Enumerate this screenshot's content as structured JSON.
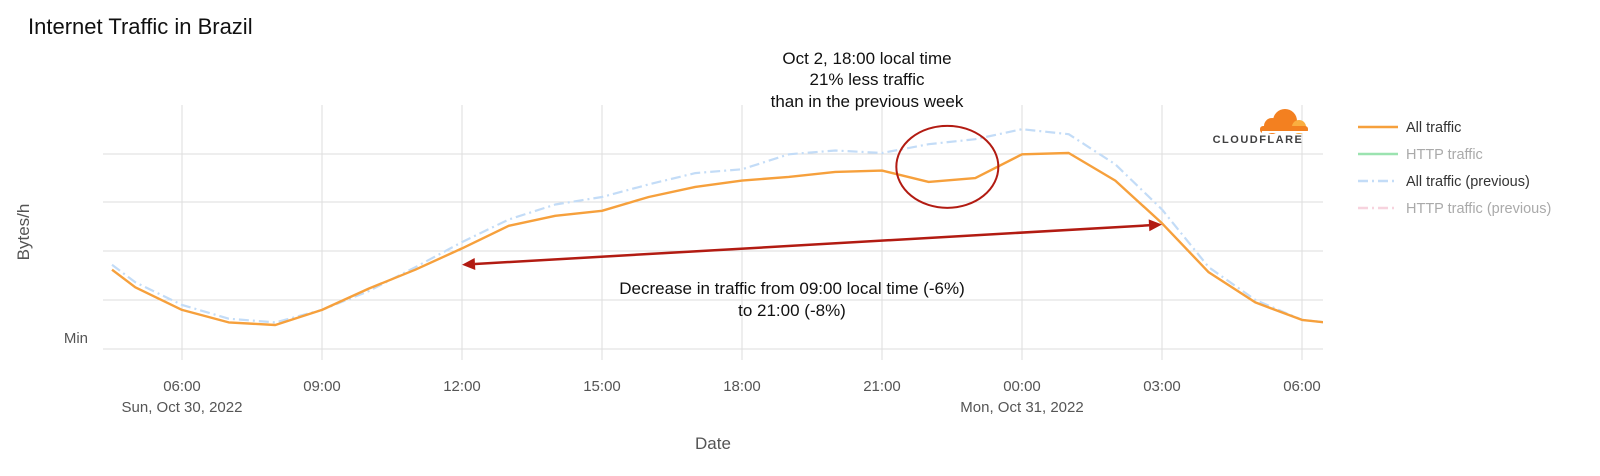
{
  "colors": {
    "all_traffic": "#f6a03c",
    "http_traffic": "#9be3b0",
    "all_traffic_previous": "#c3dcf7",
    "http_traffic_previous": "#f7d3de",
    "annotation": "#b21b12",
    "legend_active_text": "#333333",
    "legend_inactive_text": "#aaaaaa",
    "grid": "#dddddd",
    "brand_orange": "#f38020"
  },
  "logo": {
    "text": "CLOUDFLARE",
    "icon": "cloudflare-cloud-icon"
  },
  "chart_data": {
    "type": "line",
    "title": "Internet Traffic in Brazil",
    "xlabel": "Date",
    "ylabel": "Bytes/h",
    "y_tick_labels": [
      {
        "value": 0,
        "label": "Min"
      }
    ],
    "ylim": [
      0,
      100
    ],
    "x_range_hours": [
      4.6,
      30.4
    ],
    "x_ticks": [
      {
        "hour": 6,
        "label": "06:00",
        "sublabel": "Sun, Oct 30, 2022"
      },
      {
        "hour": 9,
        "label": "09:00",
        "sublabel": ""
      },
      {
        "hour": 12,
        "label": "12:00",
        "sublabel": ""
      },
      {
        "hour": 15,
        "label": "15:00",
        "sublabel": ""
      },
      {
        "hour": 18,
        "label": "18:00",
        "sublabel": ""
      },
      {
        "hour": 21,
        "label": "21:00",
        "sublabel": ""
      },
      {
        "hour": 24,
        "label": "00:00",
        "sublabel": "Mon, Oct 31, 2022"
      },
      {
        "hour": 27,
        "label": "03:00",
        "sublabel": ""
      },
      {
        "hour": 30,
        "label": "06:00",
        "sublabel": ""
      }
    ],
    "grid": true,
    "legend_position": "right",
    "series": [
      {
        "name": "All traffic",
        "color_key": "all_traffic",
        "dash": "solid",
        "active": true,
        "x": [
          4.5,
          5,
          6,
          7,
          8,
          9,
          10,
          11,
          12,
          13,
          14,
          15,
          16,
          17,
          18,
          19,
          20,
          21,
          22,
          23,
          24,
          25,
          26,
          27,
          28,
          29,
          30,
          30.5
        ],
        "values": [
          26,
          19,
          10,
          5,
          4,
          10,
          18.5,
          26,
          34.5,
          43.5,
          47.5,
          49.5,
          55,
          59,
          61.5,
          63,
          65,
          65.5,
          61,
          62.5,
          72,
          72.5,
          61.5,
          44.5,
          25,
          13,
          6,
          5
        ]
      },
      {
        "name": "HTTP traffic",
        "color_key": "http_traffic",
        "dash": "solid",
        "active": false,
        "x": [],
        "values": []
      },
      {
        "name": "All traffic (previous)",
        "color_key": "all_traffic_previous",
        "dash": "dashdot",
        "active": true,
        "x": [
          4.5,
          5,
          6,
          7,
          8,
          9,
          10,
          11,
          12,
          13,
          14,
          15,
          16,
          17,
          18,
          19,
          20,
          21,
          22,
          23,
          24,
          25,
          26,
          27,
          28,
          29,
          30,
          30.5
        ],
        "values": [
          28,
          21,
          12,
          6.5,
          5,
          10,
          17.5,
          27,
          37,
          46,
          52,
          55,
          60,
          64.5,
          66,
          72,
          73.5,
          72.5,
          76,
          78,
          82,
          80,
          68,
          50,
          27,
          14,
          6,
          5
        ]
      },
      {
        "name": "HTTP traffic (previous)",
        "color_key": "http_traffic_previous",
        "dash": "dashdot",
        "active": false,
        "x": [],
        "values": []
      }
    ],
    "annotations": [
      {
        "id": "drop-note",
        "lines": [
          "Oct 2, 18:00 local time",
          "21% less traffic",
          "than in the previous week"
        ],
        "highlight_hour": 22.4,
        "highlight_value": 67
      },
      {
        "id": "decrease-note",
        "lines": [
          "Decrease in traffic from 09:00 local time (-6%)",
          "to 21:00 (-8%)"
        ],
        "arrow_from": {
          "hour": 12,
          "value": 28
        },
        "arrow_to": {
          "hour": 27,
          "value": 44
        }
      }
    ]
  }
}
